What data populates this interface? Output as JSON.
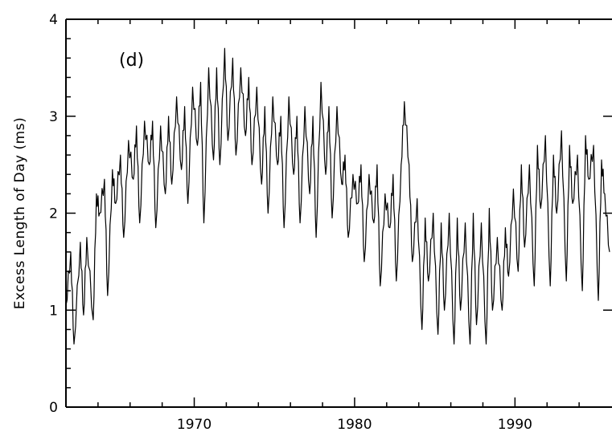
{
  "chart_data": {
    "type": "line",
    "annotation": "(d)",
    "ylabel": "Excess Length of Day (ms)",
    "xlabel": "",
    "xlim": [
      1962,
      1996
    ],
    "ylim": [
      0,
      4
    ],
    "x_ticks": [
      1970,
      1980,
      1990
    ],
    "x_tick_labels": [
      "1970",
      "1980",
      "1990"
    ],
    "y_ticks": [
      0,
      1,
      2,
      3,
      4
    ],
    "y_tick_labels": [
      "0",
      "1",
      "2",
      "3",
      "4"
    ],
    "grid": false,
    "legend": "none",
    "series": [
      {
        "color": "#000000",
        "x": [
          1962.0,
          1962.3,
          1962.5,
          1962.9,
          1963.1,
          1963.3,
          1963.7,
          1963.9,
          1964.1,
          1964.4,
          1964.6,
          1964.9,
          1965.1,
          1965.4,
          1965.6,
          1965.9,
          1966.2,
          1966.4,
          1966.6,
          1966.9,
          1967.2,
          1967.4,
          1967.6,
          1967.9,
          1968.2,
          1968.4,
          1968.6,
          1968.9,
          1969.2,
          1969.4,
          1969.6,
          1969.9,
          1970.2,
          1970.4,
          1970.6,
          1970.9,
          1971.2,
          1971.4,
          1971.6,
          1971.9,
          1972.1,
          1972.4,
          1972.6,
          1972.9,
          1973.2,
          1973.4,
          1973.6,
          1973.9,
          1974.2,
          1974.4,
          1974.6,
          1974.9,
          1975.2,
          1975.4,
          1975.6,
          1975.9,
          1976.2,
          1976.4,
          1976.6,
          1976.9,
          1977.2,
          1977.4,
          1977.6,
          1977.9,
          1978.2,
          1978.4,
          1978.6,
          1978.9,
          1979.2,
          1979.4,
          1979.6,
          1979.9,
          1980.2,
          1980.4,
          1980.6,
          1980.9,
          1981.2,
          1981.4,
          1981.6,
          1981.9,
          1982.2,
          1982.4,
          1982.6,
          1982.9,
          1983.1,
          1983.4,
          1983.6,
          1983.9,
          1984.2,
          1984.4,
          1984.6,
          1984.9,
          1985.2,
          1985.4,
          1985.6,
          1985.9,
          1986.2,
          1986.4,
          1986.6,
          1986.9,
          1987.2,
          1987.4,
          1987.6,
          1987.9,
          1988.2,
          1988.4,
          1988.6,
          1988.9,
          1989.2,
          1989.4,
          1989.6,
          1989.9,
          1990.2,
          1990.4,
          1990.6,
          1990.9,
          1991.2,
          1991.4,
          1991.6,
          1991.9,
          1992.2,
          1992.4,
          1992.6,
          1992.9,
          1993.2,
          1993.4,
          1993.6,
          1993.9,
          1994.2,
          1994.4,
          1994.6,
          1994.9,
          1995.2,
          1995.4,
          1995.6,
          1995.9
        ],
        "y": [
          1.05,
          1.6,
          0.65,
          1.7,
          0.95,
          1.75,
          0.9,
          2.2,
          2.0,
          2.35,
          1.15,
          2.45,
          2.1,
          2.6,
          1.75,
          2.75,
          2.35,
          2.9,
          1.9,
          2.95,
          2.5,
          2.95,
          1.85,
          2.9,
          2.2,
          3.0,
          2.3,
          3.2,
          2.45,
          3.1,
          2.1,
          3.3,
          2.7,
          3.35,
          1.9,
          3.5,
          2.55,
          3.5,
          2.5,
          3.7,
          2.75,
          3.6,
          2.6,
          3.5,
          2.8,
          3.4,
          2.5,
          3.3,
          2.3,
          3.1,
          2.0,
          3.2,
          2.5,
          3.0,
          1.85,
          3.2,
          2.4,
          3.0,
          1.9,
          3.1,
          2.2,
          3.0,
          1.75,
          3.35,
          2.4,
          3.1,
          1.95,
          3.1,
          2.3,
          2.6,
          1.75,
          2.4,
          2.1,
          2.5,
          1.5,
          2.4,
          1.9,
          2.5,
          1.25,
          2.2,
          1.85,
          2.4,
          1.3,
          2.5,
          3.15,
          2.5,
          1.5,
          2.15,
          0.8,
          1.95,
          1.3,
          2.0,
          0.75,
          1.9,
          1.0,
          2.0,
          0.65,
          1.95,
          1.0,
          1.9,
          0.65,
          2.0,
          0.85,
          1.9,
          0.65,
          2.05,
          1.0,
          1.75,
          1.0,
          1.85,
          1.35,
          2.25,
          1.4,
          2.5,
          1.65,
          2.5,
          1.25,
          2.7,
          2.05,
          2.8,
          1.25,
          2.6,
          2.0,
          2.85,
          1.3,
          2.7,
          2.1,
          2.6,
          1.2,
          2.8,
          2.35,
          2.7,
          1.1,
          2.55,
          2.2,
          1.6
        ]
      }
    ]
  }
}
